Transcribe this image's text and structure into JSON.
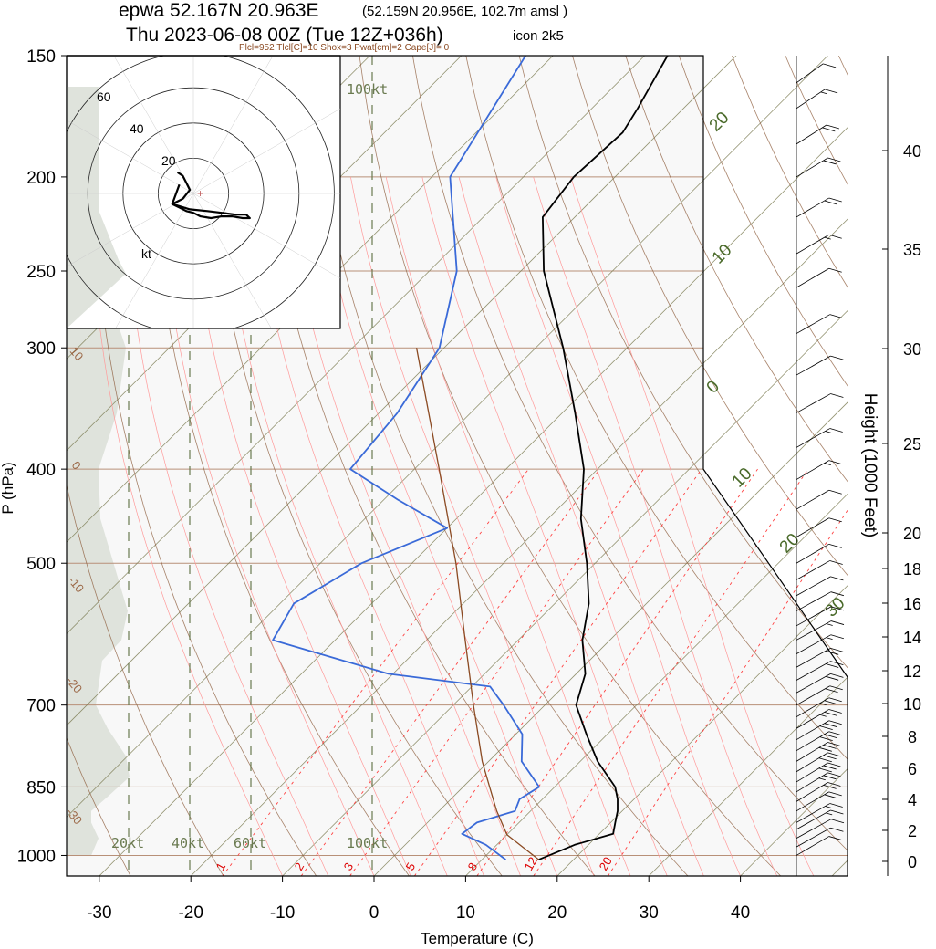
{
  "header": {
    "station_line": "epwa 52.167N 20.963E",
    "grid_point": "(52.159N 20.956E, 102.7m amsl )",
    "valid_line": "Thu 2023-06-08 00Z (Tue 12Z+036h)",
    "model": "icon 2k5",
    "indices": "Plcl=952 Tlcl[C]=10 Shox=3 Pwat[cm]=2 Cape[J]= 0"
  },
  "axes": {
    "xlabel": "Temperature (C)",
    "ylabel": "P (hPa)",
    "height_label": "Height (1000 Feet)"
  },
  "colors": {
    "temperature": "#000000",
    "dewpoint": "#3a6ad8",
    "parcel": "#8b4a22",
    "isobar": "#b89078",
    "dry_adiabat": "#8b5a38",
    "moist_adiabat": "#ff9a9a",
    "mixing_ratio": "#ff4040",
    "isotherm": "#7a7a50",
    "tropopause_shade": "#dfe3dc",
    "label_green": "#4a6a2a",
    "label_brown": "#8b4a22",
    "label_red": "#dd0000"
  },
  "chart_data": [
    {
      "type": "line",
      "name": "skew-t",
      "pressure_axis": {
        "ticks": [
          150,
          200,
          250,
          300,
          400,
          500,
          700,
          850,
          1000
        ],
        "range_hpa": [
          150,
          1050
        ],
        "scale": "log"
      },
      "temperature_axis": {
        "ticks": [
          -30,
          -20,
          -10,
          0,
          10,
          20,
          30,
          40
        ],
        "range_c_at_1050hpa": [
          -34,
          46
        ]
      },
      "isotherm_labels": [
        "20",
        "10",
        "0",
        "10",
        "20",
        "30"
      ],
      "dry_adiabat_labels": [
        "30",
        "20",
        "10",
        "0",
        "-10",
        "-20",
        "-30"
      ],
      "mixing_ratio_labels": [
        "1",
        "2",
        "3",
        "5",
        "8",
        "12",
        "20"
      ],
      "series": [
        {
          "role": "temperature",
          "points": [
            {
              "p": 1010,
              "t": 16.2
            },
            {
              "p": 975,
              "t": 18.5
            },
            {
              "p": 950,
              "t": 21.5
            },
            {
              "p": 925,
              "t": 20.5
            },
            {
              "p": 900,
              "t": 19.5
            },
            {
              "p": 875,
              "t": 18.2
            },
            {
              "p": 850,
              "t": 16.6
            },
            {
              "p": 800,
              "t": 11.9
            },
            {
              "p": 750,
              "t": 7.7
            },
            {
              "p": 700,
              "t": 3.4
            },
            {
              "p": 650,
              "t": 1.0
            },
            {
              "p": 600,
              "t": -3.0
            },
            {
              "p": 550,
              "t": -6.3
            },
            {
              "p": 500,
              "t": -10.9
            },
            {
              "p": 450,
              "t": -16.4
            },
            {
              "p": 400,
              "t": -21.5
            },
            {
              "p": 350,
              "t": -28.6
            },
            {
              "p": 300,
              "t": -37.0
            },
            {
              "p": 250,
              "t": -47.5
            },
            {
              "p": 220,
              "t": -53.5
            },
            {
              "p": 200,
              "t": -54.5
            },
            {
              "p": 180,
              "t": -54.0
            },
            {
              "p": 170,
              "t": -55.0
            },
            {
              "p": 150,
              "t": -57.5
            }
          ]
        },
        {
          "role": "dewpoint",
          "points": [
            {
              "p": 1010,
              "t": 12.6
            },
            {
              "p": 975,
              "t": 8.8
            },
            {
              "p": 950,
              "t": 5.0
            },
            {
              "p": 925,
              "t": 5.4
            },
            {
              "p": 900,
              "t": 8.3
            },
            {
              "p": 875,
              "t": 7.5
            },
            {
              "p": 850,
              "t": 8.3
            },
            {
              "p": 800,
              "t": 3.6
            },
            {
              "p": 750,
              "t": 0.7
            },
            {
              "p": 700,
              "t": -4.5
            },
            {
              "p": 670,
              "t": -8.0
            },
            {
              "p": 650,
              "t": -20.5
            },
            {
              "p": 600,
              "t": -36.8
            },
            {
              "p": 550,
              "t": -38.5
            },
            {
              "p": 500,
              "t": -35.5
            },
            {
              "p": 460,
              "t": -30.0
            },
            {
              "p": 430,
              "t": -38.5
            },
            {
              "p": 400,
              "t": -47.0
            },
            {
              "p": 350,
              "t": -48.0
            },
            {
              "p": 300,
              "t": -50.5
            },
            {
              "p": 250,
              "t": -57.0
            },
            {
              "p": 200,
              "t": -68.0
            },
            {
              "p": 150,
              "t": -73.0
            }
          ]
        },
        {
          "role": "parcel",
          "points": [
            {
              "p": 1010,
              "t": 16.2
            },
            {
              "p": 952,
              "t": 10.0
            },
            {
              "p": 900,
              "t": 6.3
            },
            {
              "p": 850,
              "t": 2.9
            },
            {
              "p": 800,
              "t": -0.7
            },
            {
              "p": 700,
              "t": -7.8
            },
            {
              "p": 600,
              "t": -15.8
            },
            {
              "p": 500,
              "t": -25.2
            },
            {
              "p": 400,
              "t": -37.3
            },
            {
              "p": 300,
              "t": -53.0
            }
          ]
        }
      ]
    },
    {
      "type": "scatter",
      "name": "hodograph",
      "ring_labels": [
        "20",
        "40",
        "60"
      ],
      "unit_label": "kt",
      "speed_labels": [
        "20kt",
        "40kt",
        "60kt",
        "100kt"
      ],
      "u_kt": [
        -8,
        -12,
        -2,
        8,
        16,
        24,
        30,
        32,
        28,
        22,
        16,
        10,
        4,
        0,
        -4,
        -8,
        -12,
        -6,
        -2,
        -4,
        -6,
        -9
      ],
      "v_kt": [
        5,
        -6,
        -9,
        -10,
        -11,
        -12,
        -12,
        -14,
        -14,
        -13,
        -13,
        -14,
        -13,
        -11,
        -10,
        -8,
        -6,
        -3,
        2,
        6,
        10,
        12
      ]
    }
  ],
  "height_scale": {
    "labels": [
      "0",
      "2",
      "4",
      "6",
      "8",
      "10",
      "12",
      "14",
      "16",
      "18",
      "20",
      "25",
      "30",
      "35",
      "40"
    ],
    "thousand_ft": [
      0,
      2,
      4,
      6,
      8,
      10,
      12,
      14,
      16,
      18,
      20,
      25,
      30,
      35,
      40
    ]
  },
  "wind_profile": {
    "unit": "kt",
    "pressure_hpa": [
      1000,
      980,
      960,
      940,
      925,
      900,
      880,
      860,
      840,
      820,
      800,
      780,
      760,
      740,
      720,
      700,
      680,
      660,
      640,
      620,
      600,
      580,
      560,
      540,
      520,
      500,
      470,
      440,
      410,
      380,
      350,
      320,
      290,
      260,
      240,
      220,
      200,
      185,
      170,
      160
    ],
    "speed_kt": [
      10,
      12,
      14,
      16,
      18,
      20,
      24,
      28,
      30,
      30,
      30,
      30,
      30,
      28,
      26,
      24,
      22,
      20,
      20,
      18,
      16,
      14,
      12,
      12,
      12,
      14,
      14,
      14,
      16,
      16,
      14,
      12,
      12,
      14,
      16,
      20,
      22,
      22,
      16,
      10
    ],
    "direction_deg": [
      250,
      260,
      270,
      280,
      285,
      290,
      295,
      295,
      295,
      295,
      295,
      290,
      290,
      290,
      290,
      285,
      280,
      280,
      280,
      275,
      270,
      270,
      265,
      260,
      255,
      250,
      250,
      250,
      250,
      255,
      260,
      260,
      255,
      250,
      250,
      250,
      245,
      240,
      235,
      230
    ]
  }
}
